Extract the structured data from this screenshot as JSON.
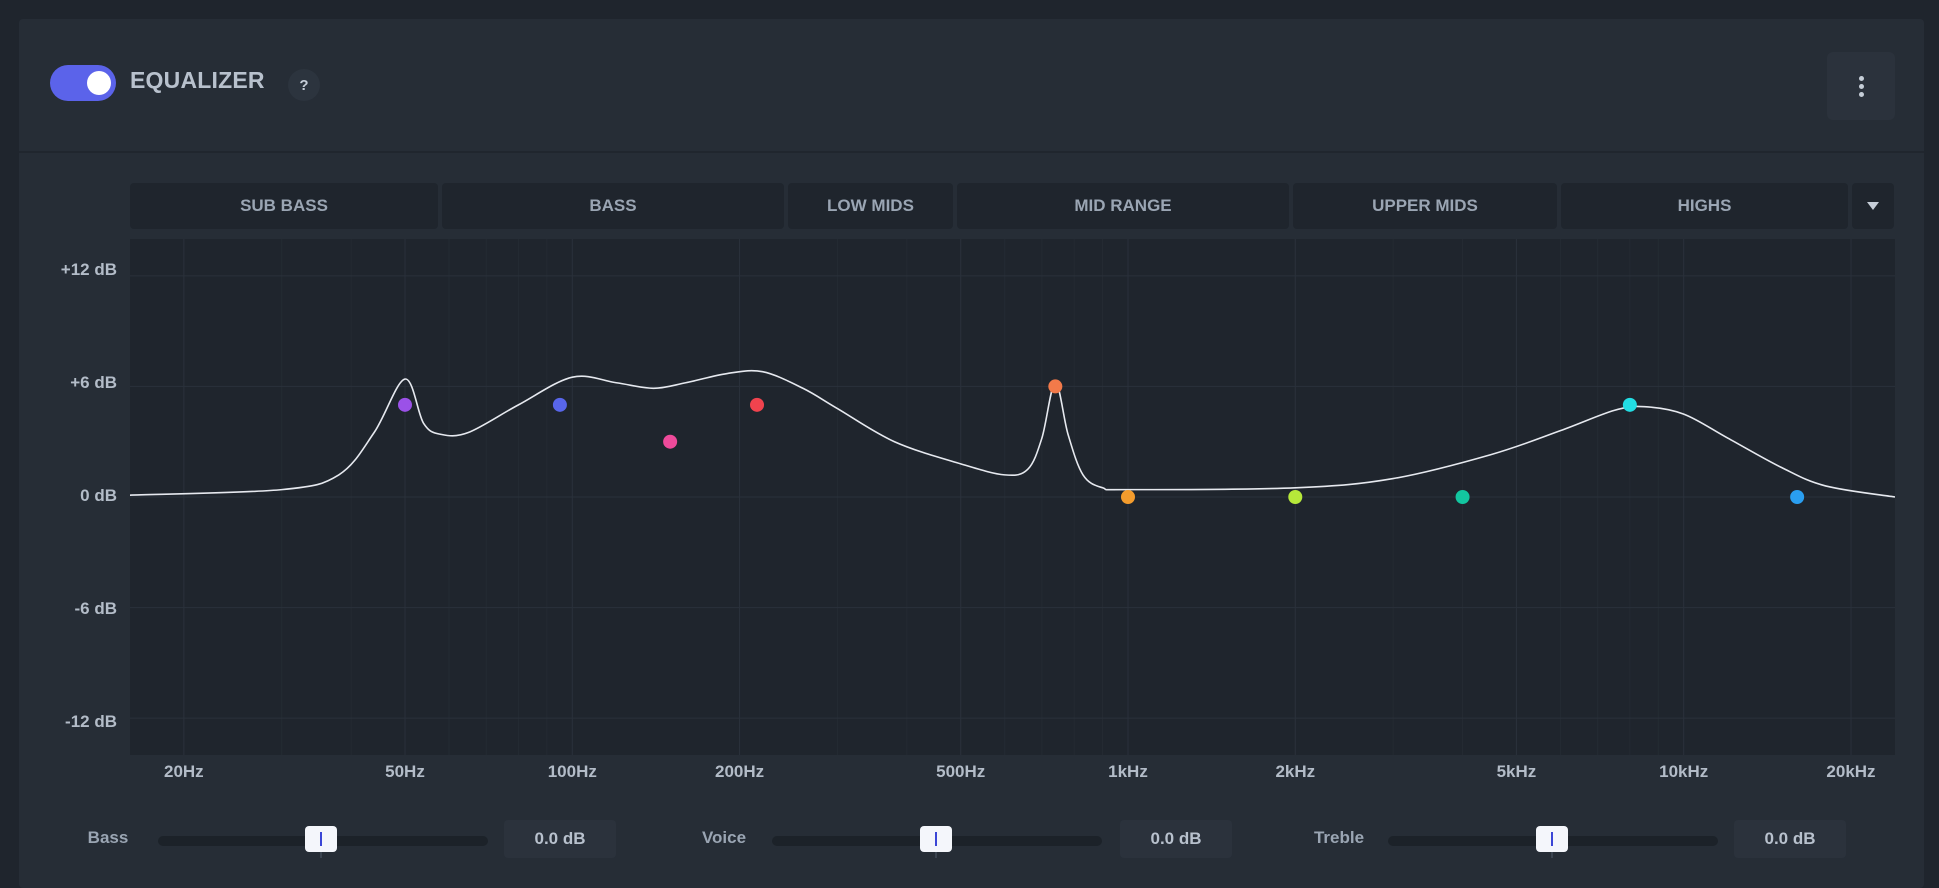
{
  "header": {
    "title": "EQUALIZER",
    "help": "?",
    "enabled": true
  },
  "bands": [
    "SUB BASS",
    "BASS",
    "LOW MIDS",
    "MID RANGE",
    "UPPER MIDS",
    "HIGHS"
  ],
  "controls": [
    {
      "label": "Bass",
      "value": "0.0 dB",
      "level": 0.5
    },
    {
      "label": "Voice",
      "value": "0.0 dB",
      "level": 0.5
    },
    {
      "label": "Treble",
      "value": "0.0 dB",
      "level": 0.5
    }
  ],
  "chart_data": {
    "type": "line",
    "x_scale": "log",
    "xlim": [
      16,
      24000
    ],
    "ylim": [
      -14,
      14
    ],
    "y_tick_labels": [
      "+12 dB",
      "+6 dB",
      "0 dB",
      "-6 dB",
      "-12 dB"
    ],
    "y_ticks": [
      12,
      6,
      0,
      -6,
      -12
    ],
    "x_tick_labels": [
      "20Hz",
      "50Hz",
      "100Hz",
      "200Hz",
      "500Hz",
      "1kHz",
      "2kHz",
      "5kHz",
      "10kHz",
      "20kHz"
    ],
    "x_ticks": [
      20,
      50,
      100,
      200,
      500,
      1000,
      2000,
      5000,
      10000,
      20000
    ],
    "grid": true,
    "curve_color": "#e6e9ef",
    "response_curve": [
      [
        16,
        0.1
      ],
      [
        30,
        0.4
      ],
      [
        38,
        1.2
      ],
      [
        44,
        3.5
      ],
      [
        50,
        6.4
      ],
      [
        54,
        4.0
      ],
      [
        58,
        3.4
      ],
      [
        65,
        3.5
      ],
      [
        80,
        5.0
      ],
      [
        100,
        6.5
      ],
      [
        120,
        6.2
      ],
      [
        140,
        5.9
      ],
      [
        160,
        6.2
      ],
      [
        190,
        6.7
      ],
      [
        220,
        6.8
      ],
      [
        260,
        5.9
      ],
      [
        300,
        4.8
      ],
      [
        380,
        3.0
      ],
      [
        500,
        1.8
      ],
      [
        600,
        1.2
      ],
      [
        660,
        1.5
      ],
      [
        700,
        3.2
      ],
      [
        740,
        6.2
      ],
      [
        780,
        3.4
      ],
      [
        830,
        1.2
      ],
      [
        900,
        0.5
      ],
      [
        1000,
        0.4
      ],
      [
        2000,
        0.5
      ],
      [
        3000,
        1.0
      ],
      [
        4500,
        2.3
      ],
      [
        6000,
        3.6
      ],
      [
        7500,
        4.7
      ],
      [
        8500,
        4.9
      ],
      [
        10000,
        4.5
      ],
      [
        12000,
        3.2
      ],
      [
        15000,
        1.6
      ],
      [
        18000,
        0.6
      ],
      [
        24000,
        0.0
      ]
    ],
    "points": [
      {
        "x": 50,
        "y": 5,
        "color": "#9b51e8"
      },
      {
        "x": 95,
        "y": 5,
        "color": "#5866ea"
      },
      {
        "x": 150,
        "y": 3,
        "color": "#ee4a9a"
      },
      {
        "x": 215,
        "y": 5,
        "color": "#f0434e"
      },
      {
        "x": 740,
        "y": 6,
        "color": "#f27a4a"
      },
      {
        "x": 1000,
        "y": 0,
        "color": "#f39c2d"
      },
      {
        "x": 2000,
        "y": 0,
        "color": "#b6e83a"
      },
      {
        "x": 4000,
        "y": 0,
        "color": "#13c6a0"
      },
      {
        "x": 8000,
        "y": 5,
        "color": "#22dde3"
      },
      {
        "x": 16000,
        "y": 0,
        "color": "#2a9ef0"
      }
    ]
  }
}
